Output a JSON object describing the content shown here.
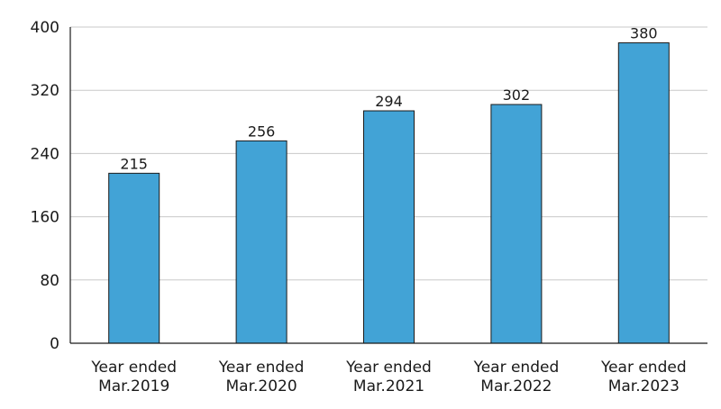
{
  "chart_data": {
    "type": "bar",
    "title": "",
    "xlabel": "",
    "ylabel": "",
    "categories": [
      [
        "Year ended",
        "Mar.2019"
      ],
      [
        "Year ended",
        "Mar.2020"
      ],
      [
        "Year ended",
        "Mar.2021"
      ],
      [
        "Year ended",
        "Mar.2022"
      ],
      [
        "Year ended",
        "Mar.2023"
      ]
    ],
    "values": [
      215,
      256,
      294,
      302,
      380
    ],
    "data_labels": [
      "215",
      "256",
      "294",
      "302",
      "380"
    ],
    "ylim": [
      0,
      400
    ],
    "yticks": [
      0,
      80,
      160,
      240,
      320,
      400
    ],
    "ytick_labels": [
      "0",
      "80",
      "160",
      "240",
      "320",
      "400"
    ],
    "grid": true,
    "bar_color": "#42a3d6",
    "bar_edge_color": "#1a1a1a",
    "grid_color": "#c8c8c8",
    "axis_color": "#1a1a1a"
  }
}
